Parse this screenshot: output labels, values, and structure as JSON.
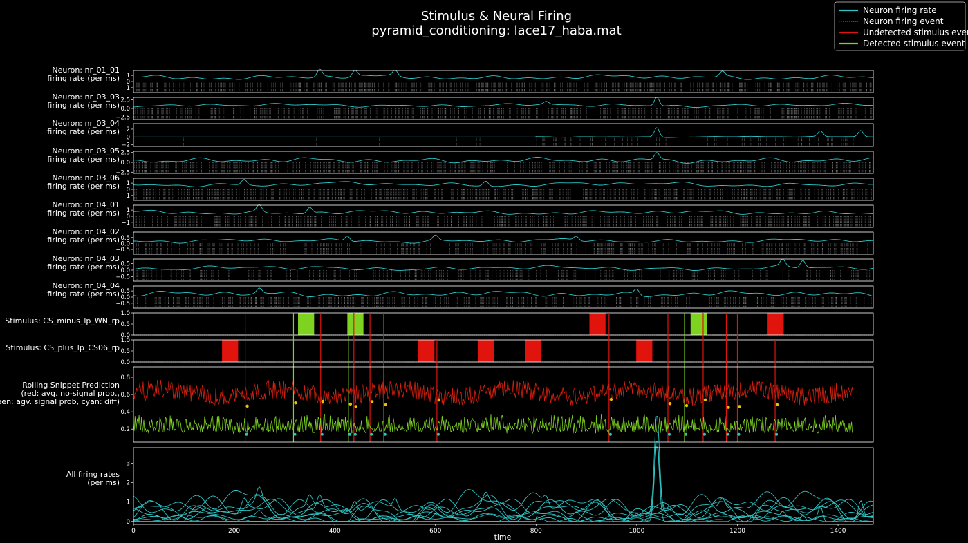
{
  "figure": {
    "title": "Stimulus & Neural Firing",
    "subtitle": "pyramid_conditioning: lace17_haba.mat",
    "xlabel": "time"
  },
  "legend": {
    "placement": "top-right",
    "items": [
      {
        "label": "Neuron firing rate",
        "color": "#2ec4c4",
        "style": "solid"
      },
      {
        "label": "Neuron firing event",
        "color": "#888888",
        "style": "dotted"
      },
      {
        "label": "Undetected stimulus event",
        "color": "#e0140c",
        "style": "solid"
      },
      {
        "label": "Detected stimulus event",
        "color": "#7ed321",
        "style": "solid"
      }
    ]
  },
  "colors": {
    "rate": "#2ec4c4",
    "event": "#9a9a9a",
    "undetected": "#e0140c",
    "detected": "#7ed321",
    "prob_nosignal": "#d9200f",
    "prob_signal": "#7ed321",
    "diff": "#2ec4c4",
    "marker": "#f0c000"
  },
  "chart_data": {
    "type": "line",
    "xlim": [
      0,
      1470
    ],
    "xticks": [
      0,
      200,
      400,
      600,
      800,
      1000,
      1200,
      1400
    ],
    "neurons": [
      {
        "name": "Neuron: nr_01_01",
        "ylabel": "firing rate (per ms)",
        "yticks": [
          "1",
          "0",
          "−1"
        ],
        "ylim": [
          -1.8,
          1.8
        ],
        "base": 0.7,
        "amp": 0.35,
        "density": 0.85,
        "bursts": [
          [
            370,
            1.2
          ],
          [
            440,
            1.0
          ],
          [
            520,
            0.9
          ],
          [
            1170,
            0.8
          ]
        ]
      },
      {
        "name": "Neuron: nr_03_03",
        "ylabel": "firing rate (per ms)",
        "yticks": [
          "2.5",
          "0.0",
          "−2.5"
        ],
        "ylim": [
          -3.2,
          3.2
        ],
        "base": 0.9,
        "amp": 0.6,
        "density": 0.75,
        "bursts": [
          [
            1040,
            2.6
          ],
          [
            820,
            0.8
          ]
        ]
      },
      {
        "name": "Neuron: nr_03_04",
        "ylabel": "firing rate (per ms)",
        "yticks": [
          "2",
          "0",
          "−2"
        ],
        "ylim": [
          -2.4,
          3.4
        ],
        "base": 0.05,
        "amp": 0.15,
        "density": 0.25,
        "bursts": [
          [
            1040,
            2.4
          ],
          [
            1365,
            1.4
          ],
          [
            1445,
            1.6
          ]
        ],
        "active_from": 800
      },
      {
        "name": "Neuron: nr_03_05",
        "ylabel": "firing rate (per ms)",
        "yticks": [
          "2.5",
          "0.0",
          "−2.5"
        ],
        "ylim": [
          -2.8,
          2.8
        ],
        "base": 0.5,
        "amp": 0.6,
        "density": 0.85,
        "bursts": [
          [
            1040,
            1.8
          ]
        ]
      },
      {
        "name": "Neuron: nr_03_06",
        "ylabel": "firing rate (per ms)",
        "yticks": [
          "1",
          "0",
          "−1"
        ],
        "ylim": [
          -1.8,
          1.8
        ],
        "base": 0.8,
        "amp": 0.4,
        "density": 0.85,
        "bursts": [
          [
            220,
            0.9
          ],
          [
            700,
            0.8
          ]
        ]
      },
      {
        "name": "Neuron: nr_04_01",
        "ylabel": "firing rate (per ms)",
        "yticks": [
          "1",
          "0",
          "−1"
        ],
        "ylim": [
          -1.8,
          1.8
        ],
        "base": 0.6,
        "amp": 0.45,
        "density": 0.7,
        "bursts": [
          [
            250,
            1.1
          ],
          [
            350,
            1.0
          ]
        ]
      },
      {
        "name": "Neuron: nr_04_02",
        "ylabel": "firing rate (per ms)",
        "yticks": [
          "0.5",
          "0.0",
          "−0.5"
        ],
        "ylim": [
          -0.9,
          0.95
        ],
        "base": 0.22,
        "amp": 0.18,
        "density": 0.55,
        "bursts": [
          [
            425,
            0.45
          ],
          [
            600,
            0.4
          ],
          [
            880,
            0.35
          ]
        ]
      },
      {
        "name": "Neuron: nr_04_03",
        "ylabel": "firing rate (per ms)",
        "yticks": [
          "0.5",
          "0.0",
          "−0.5"
        ],
        "ylim": [
          -0.85,
          0.85
        ],
        "base": 0.15,
        "amp": 0.2,
        "density": 0.4,
        "bursts": [
          [
            1290,
            0.5
          ],
          [
            1330,
            0.6
          ]
        ]
      },
      {
        "name": "Neuron: nr_04_04",
        "ylabel": "firing rate (per ms)",
        "yticks": [
          "0.5",
          "0.0",
          "−0.5"
        ],
        "ylim": [
          -0.9,
          0.9
        ],
        "base": 0.25,
        "amp": 0.2,
        "density": 0.6,
        "bursts": [
          [
            250,
            0.4
          ],
          [
            1000,
            0.45
          ]
        ]
      }
    ],
    "stimuli": [
      {
        "name": "Stimulus: CS_minus_lp_WN_rp",
        "yticks": [
          "1.0",
          "0.5",
          "0.0"
        ],
        "ylim": [
          0,
          1
        ],
        "blocks": [
          {
            "start": 327,
            "end": 359,
            "status": "detected"
          },
          {
            "start": 425,
            "end": 457,
            "status": "detected"
          },
          {
            "start": 906,
            "end": 938,
            "status": "undetected"
          },
          {
            "start": 1107,
            "end": 1139,
            "status": "detected"
          },
          {
            "start": 1260,
            "end": 1292,
            "status": "undetected"
          }
        ]
      },
      {
        "name": "Stimulus: CS_plus_lp_CS06_rp",
        "yticks": [
          "1.0",
          "0.5",
          "0.0"
        ],
        "ylim": [
          0,
          1
        ],
        "blocks": [
          {
            "start": 176,
            "end": 208,
            "status": "undetected"
          },
          {
            "start": 566,
            "end": 598,
            "status": "undetected"
          },
          {
            "start": 684,
            "end": 716,
            "status": "undetected"
          },
          {
            "start": 778,
            "end": 810,
            "status": "undetected"
          },
          {
            "start": 999,
            "end": 1031,
            "status": "undetected"
          }
        ]
      }
    ],
    "event_lines": [
      {
        "x": 222,
        "status": "undetected",
        "span": "all"
      },
      {
        "x": 318,
        "status": "detected",
        "span": "all"
      },
      {
        "x": 372,
        "status": "undetected",
        "span": "all"
      },
      {
        "x": 427,
        "status": "detected",
        "span": "all"
      },
      {
        "x": 438,
        "status": "undetected",
        "span": "all"
      },
      {
        "x": 470,
        "status": "undetected",
        "span": "all"
      },
      {
        "x": 497,
        "status": "undetected",
        "span": "all"
      },
      {
        "x": 603,
        "status": "undetected",
        "span": "lower"
      },
      {
        "x": 945,
        "status": "undetected",
        "span": "all"
      },
      {
        "x": 1062,
        "status": "undetected",
        "span": "all"
      },
      {
        "x": 1095,
        "status": "detected",
        "span": "all"
      },
      {
        "x": 1132,
        "status": "undetected",
        "span": "all"
      },
      {
        "x": 1178,
        "status": "undetected",
        "span": "all"
      },
      {
        "x": 1200,
        "status": "undetected",
        "span": "all"
      },
      {
        "x": 1275,
        "status": "undetected",
        "span": "lower"
      }
    ],
    "prediction": {
      "ylabel_lines": [
        "Rolling Snippet Prediction",
        "(red: avg. no-signal prob.,",
        "green: agv. signal prob, cyan: diff)"
      ],
      "yticks": [
        0.2,
        0.4,
        0.6,
        0.8
      ],
      "ylim": [
        0.05,
        0.92
      ],
      "x_end": 1430,
      "nosignal_mean": 0.62,
      "signal_mean": 0.2
    },
    "all_rates": {
      "ylabel_lines": [
        "All firing rates",
        "(per ms)"
      ],
      "yticks": [
        0,
        1,
        2,
        3
      ],
      "ylim": [
        -0.15,
        3.8
      ],
      "peak": {
        "x": 1040,
        "y": 3.5
      }
    }
  }
}
